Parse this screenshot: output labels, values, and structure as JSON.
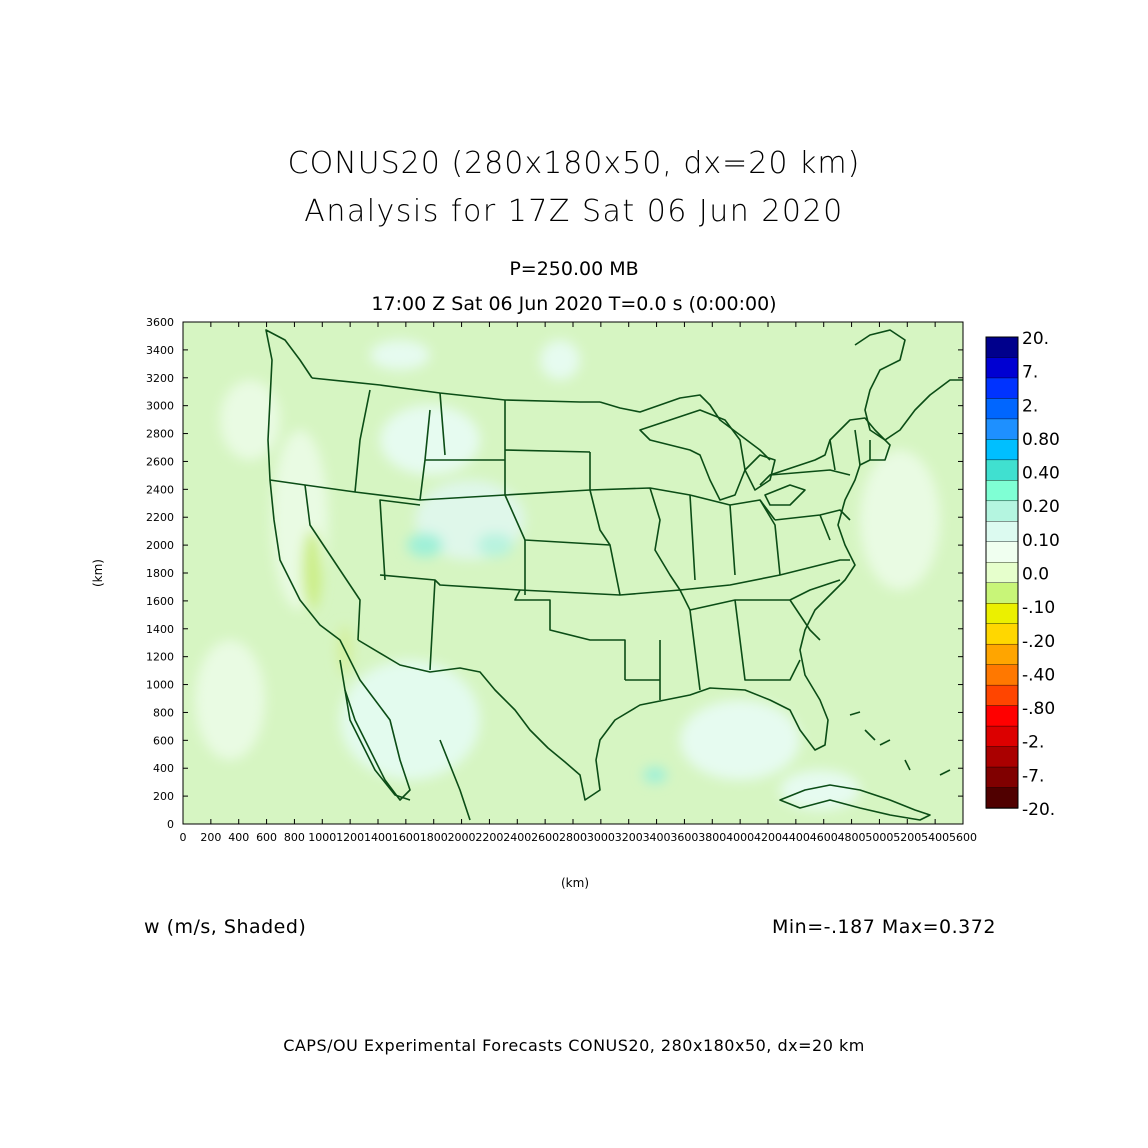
{
  "title_line1": "CONUS20 (280x180x50, dx=20 km)",
  "title_line2": "Analysis for 17Z Sat 06 Jun 2020",
  "level_label": "P=250.00 MB",
  "time_label": "17:00 Z Sat 06 Jun 2020   T=0.0 s (0:00:00)",
  "x_axis_label": "(km)",
  "y_axis_label": "(km)",
  "x_ticks": [
    "0",
    "200",
    "400",
    "600",
    "800",
    "1000",
    "1200",
    "1400",
    "1600",
    "1800",
    "2000",
    "2200",
    "2400",
    "2600",
    "2800",
    "3000",
    "3200",
    "3400",
    "3600",
    "3800",
    "4000",
    "4200",
    "4400",
    "4600",
    "4800",
    "5000",
    "5200",
    "5400",
    "5600"
  ],
  "y_ticks": [
    "0",
    "200",
    "400",
    "600",
    "800",
    "1000",
    "1200",
    "1400",
    "1600",
    "1800",
    "2000",
    "2200",
    "2400",
    "2600",
    "2800",
    "3000",
    "3200",
    "3400",
    "3600"
  ],
  "variable_label": "w (m/s, Shaded)",
  "minmax_label": "Min=-.187 Max=0.372",
  "footer": "CAPS/OU Experimental Forecasts  CONUS20, 280x180x50, dx=20 km",
  "colorbar": {
    "labels": [
      "20.",
      "7.",
      "2.",
      "0.80",
      "0.40",
      "0.20",
      "0.10",
      "0.0",
      "-.10",
      "-.20",
      "-.40",
      "-.80",
      "-2.",
      "-7.",
      "-20."
    ],
    "colors": [
      "#00008c",
      "#0000d2",
      "#0033ff",
      "#0066ff",
      "#1e90ff",
      "#00bfff",
      "#40e0d0",
      "#7fffd4",
      "#b4f5e0",
      "#dcfaf0",
      "#f0fff0",
      "#e6ffcc",
      "#c8f578",
      "#ebf000",
      "#ffd700",
      "#ffa500",
      "#ff7800",
      "#ff4500",
      "#ff0000",
      "#dc0000",
      "#aa0000",
      "#800000",
      "#500000"
    ]
  },
  "colors": {
    "field_background": "#d6f5c2",
    "boundary": "#0b4d16"
  }
}
